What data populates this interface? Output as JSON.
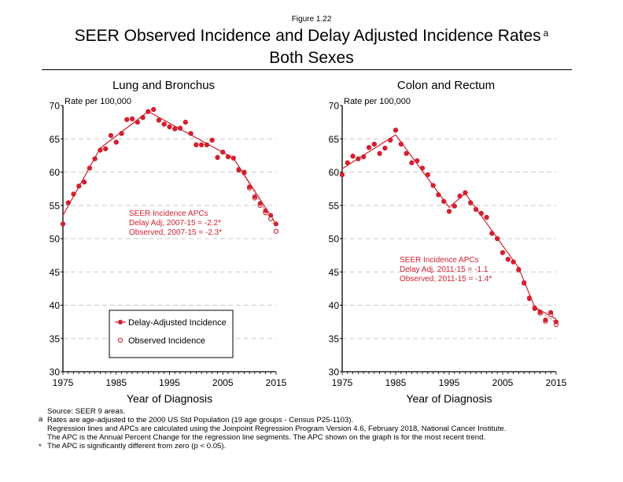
{
  "figure_label": "Figure 1.22",
  "title_line1": "SEER Observed Incidence and Delay Adjusted Incidence Rates",
  "title_superscript": "a",
  "title_line2": "Both Sexes",
  "colors": {
    "series": "#d2202f",
    "grid": "#c8c8c8",
    "axis": "#000000"
  },
  "legend": {
    "delay_adjusted": "Delay-Adjusted Incidence",
    "observed": "Observed Incidence"
  },
  "footnotes": {
    "source": "Source: SEER 9 areas.",
    "a_mark": "a",
    "a_line1": "Rates are age-adjusted to the 2000 US Std Population (19 age groups - Census P25-1103).",
    "a_line2": "Regression lines and APCs are calculated using the Joinpoint Regression Program Version 4.6, February 2018, National Cancer Institute.",
    "a_line3": "The APC is the Annual Percent Change for the regression line segments. The APC shown on the graph is for the most recent trend.",
    "star_mark": "*",
    "star_line": "The APC is significantly different from zero (p < 0.05)."
  },
  "chart_data": [
    {
      "type": "scatter",
      "title": "Lung and Bronchus",
      "xlabel": "Year of Diagnosis",
      "ylabel": "Rate per 100,000",
      "xlim": [
        1975,
        2015
      ],
      "ylim": [
        30,
        70
      ],
      "xticks": [
        1975,
        1985,
        1995,
        2005,
        2015
      ],
      "yticks": [
        30,
        35,
        40,
        45,
        50,
        55,
        60,
        65,
        70
      ],
      "grid": "horizontal dashed",
      "legend_position": "bottom-left",
      "annotation": [
        "SEER Incidence APCs",
        "Delay Adj, 2007-15 = -2.2*",
        "Observed, 2007-15 = -2.3*"
      ],
      "x": [
        1975,
        1976,
        1977,
        1978,
        1979,
        1980,
        1981,
        1982,
        1983,
        1984,
        1985,
        1986,
        1987,
        1988,
        1989,
        1990,
        1991,
        1992,
        1993,
        1994,
        1995,
        1996,
        1997,
        1998,
        1999,
        2000,
        2001,
        2002,
        2003,
        2004,
        2005,
        2006,
        2007,
        2008,
        2009,
        2010,
        2011,
        2012,
        2013,
        2014,
        2015
      ],
      "series": [
        {
          "name": "Delay-Adjusted Incidence",
          "marker": "filled-circle",
          "values": [
            52.2,
            55.4,
            56.7,
            57.9,
            58.5,
            60.6,
            62.0,
            63.3,
            63.5,
            65.5,
            64.5,
            65.8,
            67.9,
            68.0,
            67.5,
            68.2,
            69.1,
            69.4,
            67.8,
            67.2,
            66.8,
            66.5,
            66.6,
            67.5,
            65.8,
            64.1,
            64.1,
            64.1,
            64.8,
            62.2,
            63.0,
            62.3,
            62.1,
            60.4,
            60.0,
            57.8,
            56.3,
            55.3,
            54.2,
            53.5,
            52.2
          ]
        },
        {
          "name": "Observed Incidence",
          "marker": "open-circle",
          "values": [
            52.2,
            55.4,
            56.7,
            57.9,
            58.5,
            60.6,
            62.0,
            63.3,
            63.5,
            65.5,
            64.5,
            65.8,
            67.9,
            68.0,
            67.5,
            68.2,
            69.1,
            69.4,
            67.8,
            67.2,
            66.8,
            66.5,
            66.6,
            67.5,
            65.8,
            64.1,
            64.1,
            64.1,
            64.8,
            62.2,
            63.0,
            62.3,
            62.1,
            60.3,
            59.9,
            57.6,
            56.1,
            55.0,
            53.9,
            53.0,
            51.1
          ]
        },
        {
          "name": "Delay-Adjusted Trend",
          "line": "solid",
          "points": [
            [
              1975,
              53.5
            ],
            [
              1978,
              57.8
            ],
            [
              1982,
              63.6
            ],
            [
              1991,
              69.1
            ],
            [
              2007,
              62.1
            ],
            [
              2015,
              52.2
            ]
          ]
        },
        {
          "name": "Observed Trend",
          "line": "dotted",
          "points": [
            [
              2007,
              62.1
            ],
            [
              2015,
              51.6
            ]
          ]
        }
      ]
    },
    {
      "type": "scatter",
      "title": "Colon and Rectum",
      "xlabel": "Year of Diagnosis",
      "ylabel": "Rate per 100,000",
      "xlim": [
        1975,
        2015
      ],
      "ylim": [
        30,
        70
      ],
      "xticks": [
        1975,
        1985,
        1995,
        2005,
        2015
      ],
      "yticks": [
        30,
        35,
        40,
        45,
        50,
        55,
        60,
        65,
        70
      ],
      "grid": "horizontal dashed",
      "annotation": [
        "SEER Incidence APCs",
        "Delay Adj, 2011-15 = -1.1",
        "Observed, 2011-15 = -1.4*"
      ],
      "x": [
        1975,
        1976,
        1977,
        1978,
        1979,
        1980,
        1981,
        1982,
        1983,
        1984,
        1985,
        1986,
        1987,
        1988,
        1989,
        1990,
        1991,
        1992,
        1993,
        1994,
        1995,
        1996,
        1997,
        1998,
        1999,
        2000,
        2001,
        2002,
        2003,
        2004,
        2005,
        2006,
        2007,
        2008,
        2009,
        2010,
        2011,
        2012,
        2013,
        2014,
        2015
      ],
      "series": [
        {
          "name": "Delay-Adjusted Incidence",
          "marker": "filled-circle",
          "values": [
            59.6,
            61.4,
            62.4,
            62.0,
            62.3,
            63.7,
            64.2,
            62.8,
            63.6,
            64.8,
            66.3,
            64.2,
            62.8,
            61.4,
            61.7,
            60.6,
            59.6,
            58.0,
            56.6,
            55.6,
            54.1,
            54.9,
            56.4,
            56.9,
            55.4,
            54.4,
            53.8,
            53.2,
            50.8,
            50.0,
            47.9,
            46.9,
            46.5,
            45.4,
            43.4,
            41.1,
            39.6,
            39.0,
            37.8,
            38.9,
            37.5
          ]
        },
        {
          "name": "Observed Incidence",
          "marker": "open-circle",
          "values": [
            59.6,
            61.4,
            62.4,
            62.0,
            62.3,
            63.7,
            64.2,
            62.8,
            63.6,
            64.8,
            66.3,
            64.2,
            62.8,
            61.4,
            61.7,
            60.6,
            59.6,
            58.0,
            56.6,
            55.6,
            54.1,
            54.9,
            56.4,
            56.9,
            55.4,
            54.4,
            53.8,
            53.2,
            50.8,
            50.0,
            47.9,
            46.9,
            46.5,
            45.3,
            43.3,
            41.0,
            39.5,
            38.8,
            37.6,
            38.6,
            37.1
          ]
        },
        {
          "name": "Delay-Adjusted Trend",
          "line": "solid",
          "points": [
            [
              1975,
              60.5
            ],
            [
              1985,
              65.6
            ],
            [
              1995,
              54.7
            ],
            [
              1998,
              56.8
            ],
            [
              2008,
              45.6
            ],
            [
              2011,
              39.7
            ],
            [
              2015,
              37.9
            ]
          ]
        },
        {
          "name": "Observed Trend",
          "line": "dotted",
          "points": [
            [
              2011,
              39.6
            ],
            [
              2015,
              37.4
            ]
          ]
        }
      ]
    }
  ]
}
